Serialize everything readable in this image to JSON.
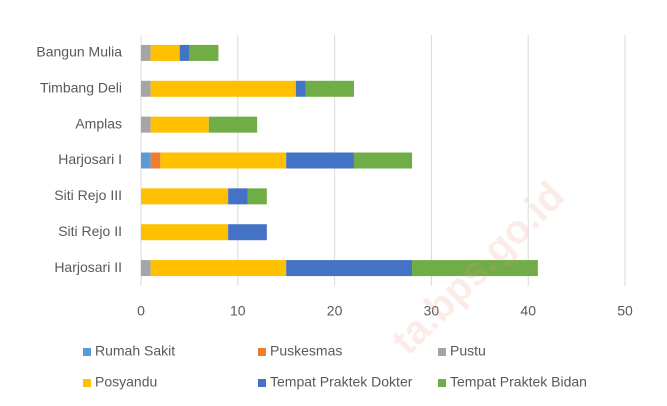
{
  "chart_data": {
    "type": "stacked_bar_horizontal",
    "categories": [
      "Bangun Mulia",
      "Timbang Deli",
      "Amplas",
      "Harjosari I",
      "Siti Rejo III",
      "Siti Rejo II",
      "Harjosari II"
    ],
    "series": [
      {
        "name": "Rumah Sakit",
        "color": "#5b9bd5",
        "values": [
          0,
          0,
          0,
          1,
          0,
          0,
          0
        ]
      },
      {
        "name": "Puskesmas",
        "color": "#ed7d31",
        "values": [
          0,
          0,
          0,
          1,
          0,
          0,
          0
        ]
      },
      {
        "name": "Pustu",
        "color": "#a5a5a5",
        "values": [
          1,
          1,
          1,
          0,
          0,
          0,
          1
        ]
      },
      {
        "name": "Posyandu",
        "color": "#ffc000",
        "values": [
          3,
          15,
          6,
          13,
          9,
          9,
          14
        ]
      },
      {
        "name": "Tempat Praktek Dokter",
        "color": "#4472c4",
        "values": [
          1,
          1,
          0,
          7,
          2,
          4,
          13
        ]
      },
      {
        "name": "Tempat Praktek Bidan",
        "color": "#70ad47",
        "values": [
          3,
          5,
          5,
          6,
          2,
          0,
          13
        ]
      }
    ],
    "xlim": [
      0,
      50
    ],
    "xticks": [
      0,
      10,
      20,
      30,
      40,
      50
    ],
    "grid": true,
    "legend": "bottom",
    "watermark": "ta.bps.go.id"
  }
}
